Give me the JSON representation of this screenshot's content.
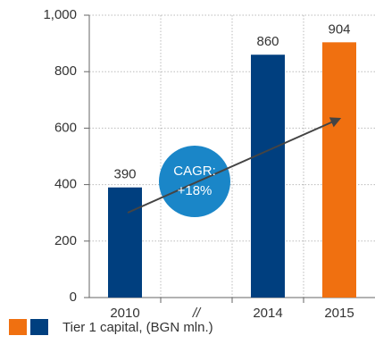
{
  "chart_data": {
    "type": "bar",
    "categories": [
      "2010",
      "//",
      "2014",
      "2015"
    ],
    "values": [
      390,
      null,
      860,
      904
    ],
    "colors": [
      "#003f7f",
      null,
      "#003f7f",
      "#f07010"
    ],
    "ylim": [
      0,
      1000
    ],
    "yticks": [
      0,
      200,
      400,
      600,
      800,
      {
        "value": 1000,
        "label": "1,000"
      }
    ],
    "grid": true,
    "annotation": [
      "CAGR:",
      "+18%"
    ],
    "legend": {
      "label": "Tier 1 capital, (BGN mln.)",
      "colors": [
        "#f07010",
        "#003f7f"
      ]
    }
  }
}
